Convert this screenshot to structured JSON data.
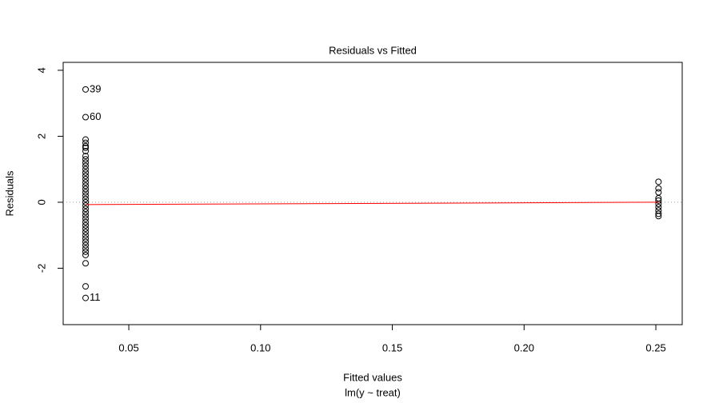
{
  "chart_data": {
    "type": "scatter",
    "title": "Residuals vs Fitted",
    "x_label": "Fitted values",
    "subtitle": "lm(y ~ treat)",
    "y_label": "Residuals",
    "xlim": [
      0.0251,
      0.26
    ],
    "ylim": [
      -3.71,
      4.24
    ],
    "xticks": [
      0.05,
      0.1,
      0.15,
      0.2,
      0.25
    ],
    "yticks": [
      -2,
      0,
      2,
      4
    ],
    "xtick_labels": [
      "0.05",
      "0.10",
      "0.15",
      "0.20",
      "0.25"
    ],
    "reference_line": 0,
    "x": [
      0.0336,
      0.0336,
      0.0336,
      0.0336,
      0.0336,
      0.0336,
      0.0336,
      0.0336,
      0.0336,
      0.0336,
      0.0336,
      0.0336,
      0.0336,
      0.0336,
      0.0336,
      0.0336,
      0.0336,
      0.0336,
      0.0336,
      0.0336,
      0.0336,
      0.0336,
      0.0336,
      0.0336,
      0.0336,
      0.0336,
      0.0336,
      0.0336,
      0.0336,
      0.0336,
      0.0336,
      0.0336,
      0.0336,
      0.0336,
      0.0336,
      0.0336,
      0.0336,
      0.0336,
      0.0336,
      0.0336,
      0.0336,
      0.251,
      0.251,
      0.251,
      0.251,
      0.251,
      0.251,
      0.251,
      0.251,
      0.251,
      0.251
    ],
    "y": [
      3.42,
      2.58,
      1.9,
      1.8,
      1.7,
      1.65,
      1.55,
      1.4,
      1.3,
      1.2,
      1.1,
      1.0,
      0.9,
      0.8,
      0.7,
      0.6,
      0.5,
      0.4,
      0.3,
      0.2,
      0.1,
      0.0,
      -0.1,
      -0.2,
      -0.3,
      -0.4,
      -0.5,
      -0.6,
      -0.7,
      -0.8,
      -0.9,
      -1.0,
      -1.1,
      -1.2,
      -1.3,
      -1.4,
      -1.5,
      -1.6,
      -1.85,
      -2.55,
      -2.9,
      0.62,
      0.42,
      0.3,
      0.12,
      0.05,
      -0.05,
      -0.15,
      -0.25,
      -0.35,
      -0.42
    ],
    "point_labels": [
      "39",
      "60",
      null,
      null,
      null,
      null,
      null,
      null,
      null,
      null,
      null,
      null,
      null,
      null,
      null,
      null,
      null,
      null,
      null,
      null,
      null,
      null,
      null,
      null,
      null,
      null,
      null,
      null,
      null,
      null,
      null,
      null,
      null,
      null,
      null,
      null,
      null,
      null,
      null,
      null,
      "11",
      null,
      null,
      null,
      null,
      null,
      null,
      null,
      null,
      null,
      null
    ],
    "smooth": {
      "color": "#ff0000",
      "x": [
        0.0336,
        0.251
      ],
      "y": [
        -0.07,
        0.0
      ]
    }
  }
}
